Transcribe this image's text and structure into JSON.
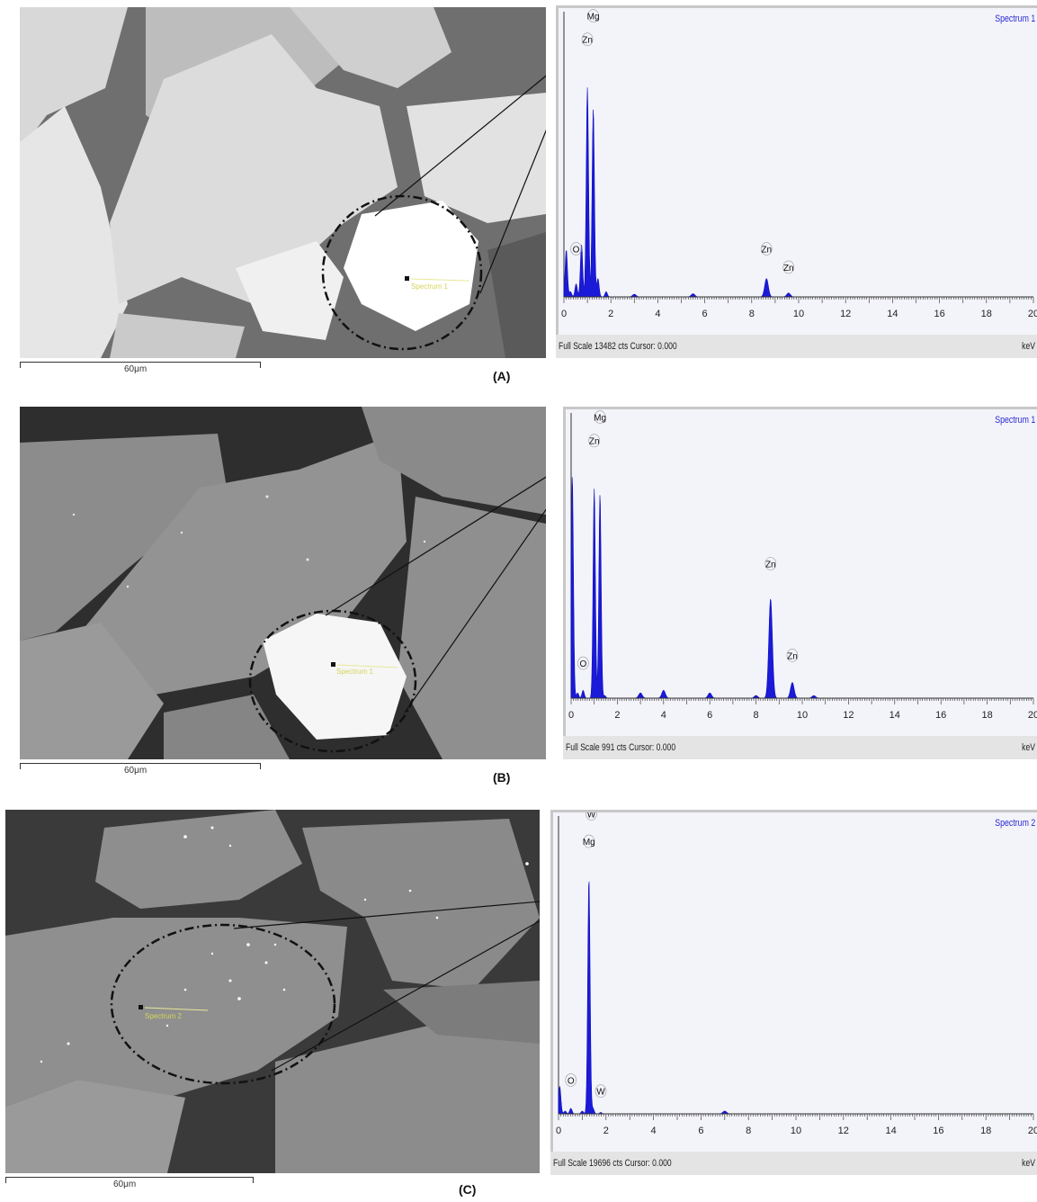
{
  "panels": [
    {
      "label": "(A)",
      "scale_bar": "60μm",
      "spot_label": "Spectrum 1",
      "spectrum": {
        "title": "Spectrum 1",
        "footer": "Full Scale 13482 cts Cursor: 0.000",
        "unit": "keV",
        "x_ticks": [
          "0",
          "2",
          "4",
          "6",
          "8",
          "10",
          "12",
          "14",
          "16",
          "18",
          "20"
        ],
        "peak_labels": [
          {
            "text": "Mg",
            "kev": 1.25,
            "rel": 1.06
          },
          {
            "text": "Zn",
            "kev": 1.0,
            "rel": 0.97
          },
          {
            "text": "O",
            "kev": 0.52,
            "rel": 0.17
          },
          {
            "text": "Zn",
            "kev": 8.63,
            "rel": 0.17
          },
          {
            "text": "Zn",
            "kev": 9.57,
            "rel": 0.1
          }
        ]
      }
    },
    {
      "label": "(B)",
      "scale_bar": "60μm",
      "spot_label": "Spectrum 1",
      "spectrum": {
        "title": "Spectrum 1",
        "footer": "Full Scale 991 cts Cursor: 0.000",
        "unit": "keV",
        "x_ticks": [
          "0",
          "2",
          "4",
          "6",
          "8",
          "10",
          "12",
          "14",
          "16",
          "18",
          "20"
        ],
        "peak_labels": [
          {
            "text": "Mg",
            "kev": 1.25,
            "rel": 1.06
          },
          {
            "text": "Zn",
            "kev": 1.0,
            "rel": 0.97
          },
          {
            "text": "O",
            "kev": 0.52,
            "rel": 0.12
          },
          {
            "text": "Zn",
            "kev": 8.63,
            "rel": 0.5
          },
          {
            "text": "Zn",
            "kev": 9.57,
            "rel": 0.15
          }
        ]
      }
    },
    {
      "label": "(C)",
      "scale_bar": "60μm",
      "spot_label": "Spectrum 2",
      "spectrum": {
        "title": "Spectrum 2",
        "footer": "Full Scale 19696 cts Cursor: 0.000",
        "unit": "keV",
        "x_ticks": [
          "0",
          "2",
          "4",
          "6",
          "8",
          "10",
          "12",
          "14",
          "16",
          "18",
          "20"
        ],
        "peak_labels": [
          {
            "text": "W",
            "kev": 1.38,
            "rel": 1.08
          },
          {
            "text": "Mg",
            "kev": 1.28,
            "rel": 0.98
          },
          {
            "text": "O",
            "kev": 0.52,
            "rel": 0.11
          },
          {
            "text": "W",
            "kev": 1.78,
            "rel": 0.07
          }
        ]
      }
    }
  ],
  "chart_data": [
    {
      "type": "line",
      "title": "Spectrum 1",
      "xlabel": "keV",
      "xlim": [
        0,
        20
      ],
      "series": [
        {
          "x": [
            0.1,
            0.28,
            0.52,
            0.75,
            1.0,
            1.25,
            1.45,
            1.8,
            3,
            5.5,
            6,
            8.63,
            9.57,
            10.5
          ],
          "values": [
            0.18,
            0.02,
            0.05,
            0.2,
            0.8,
            0.72,
            0.07,
            0.02,
            0.01,
            0.012,
            0.0,
            0.07,
            0.015,
            0.0
          ]
        }
      ]
    },
    {
      "type": "line",
      "title": "Spectrum 1",
      "xlabel": "keV",
      "xlim": [
        0,
        20
      ],
      "series": [
        {
          "x": [
            0.05,
            0.28,
            0.52,
            1.0,
            1.25,
            1.45,
            3,
            4,
            6,
            8,
            8.63,
            9.57,
            10.5,
            12
          ],
          "values": [
            0.85,
            0.02,
            0.03,
            0.8,
            0.78,
            0.01,
            0.02,
            0.03,
            0.02,
            0.01,
            0.38,
            0.06,
            0.01,
            0.0
          ]
        }
      ]
    },
    {
      "type": "line",
      "title": "Spectrum 2",
      "xlabel": "keV",
      "xlim": [
        0,
        20
      ],
      "series": [
        {
          "x": [
            0.05,
            0.28,
            0.52,
            1.0,
            1.28,
            1.45,
            1.78,
            3,
            7.0,
            10
          ],
          "values": [
            0.1,
            0.01,
            0.02,
            0.01,
            0.86,
            0.02,
            0.005,
            0.0,
            0.01,
            0.0
          ]
        }
      ]
    }
  ]
}
